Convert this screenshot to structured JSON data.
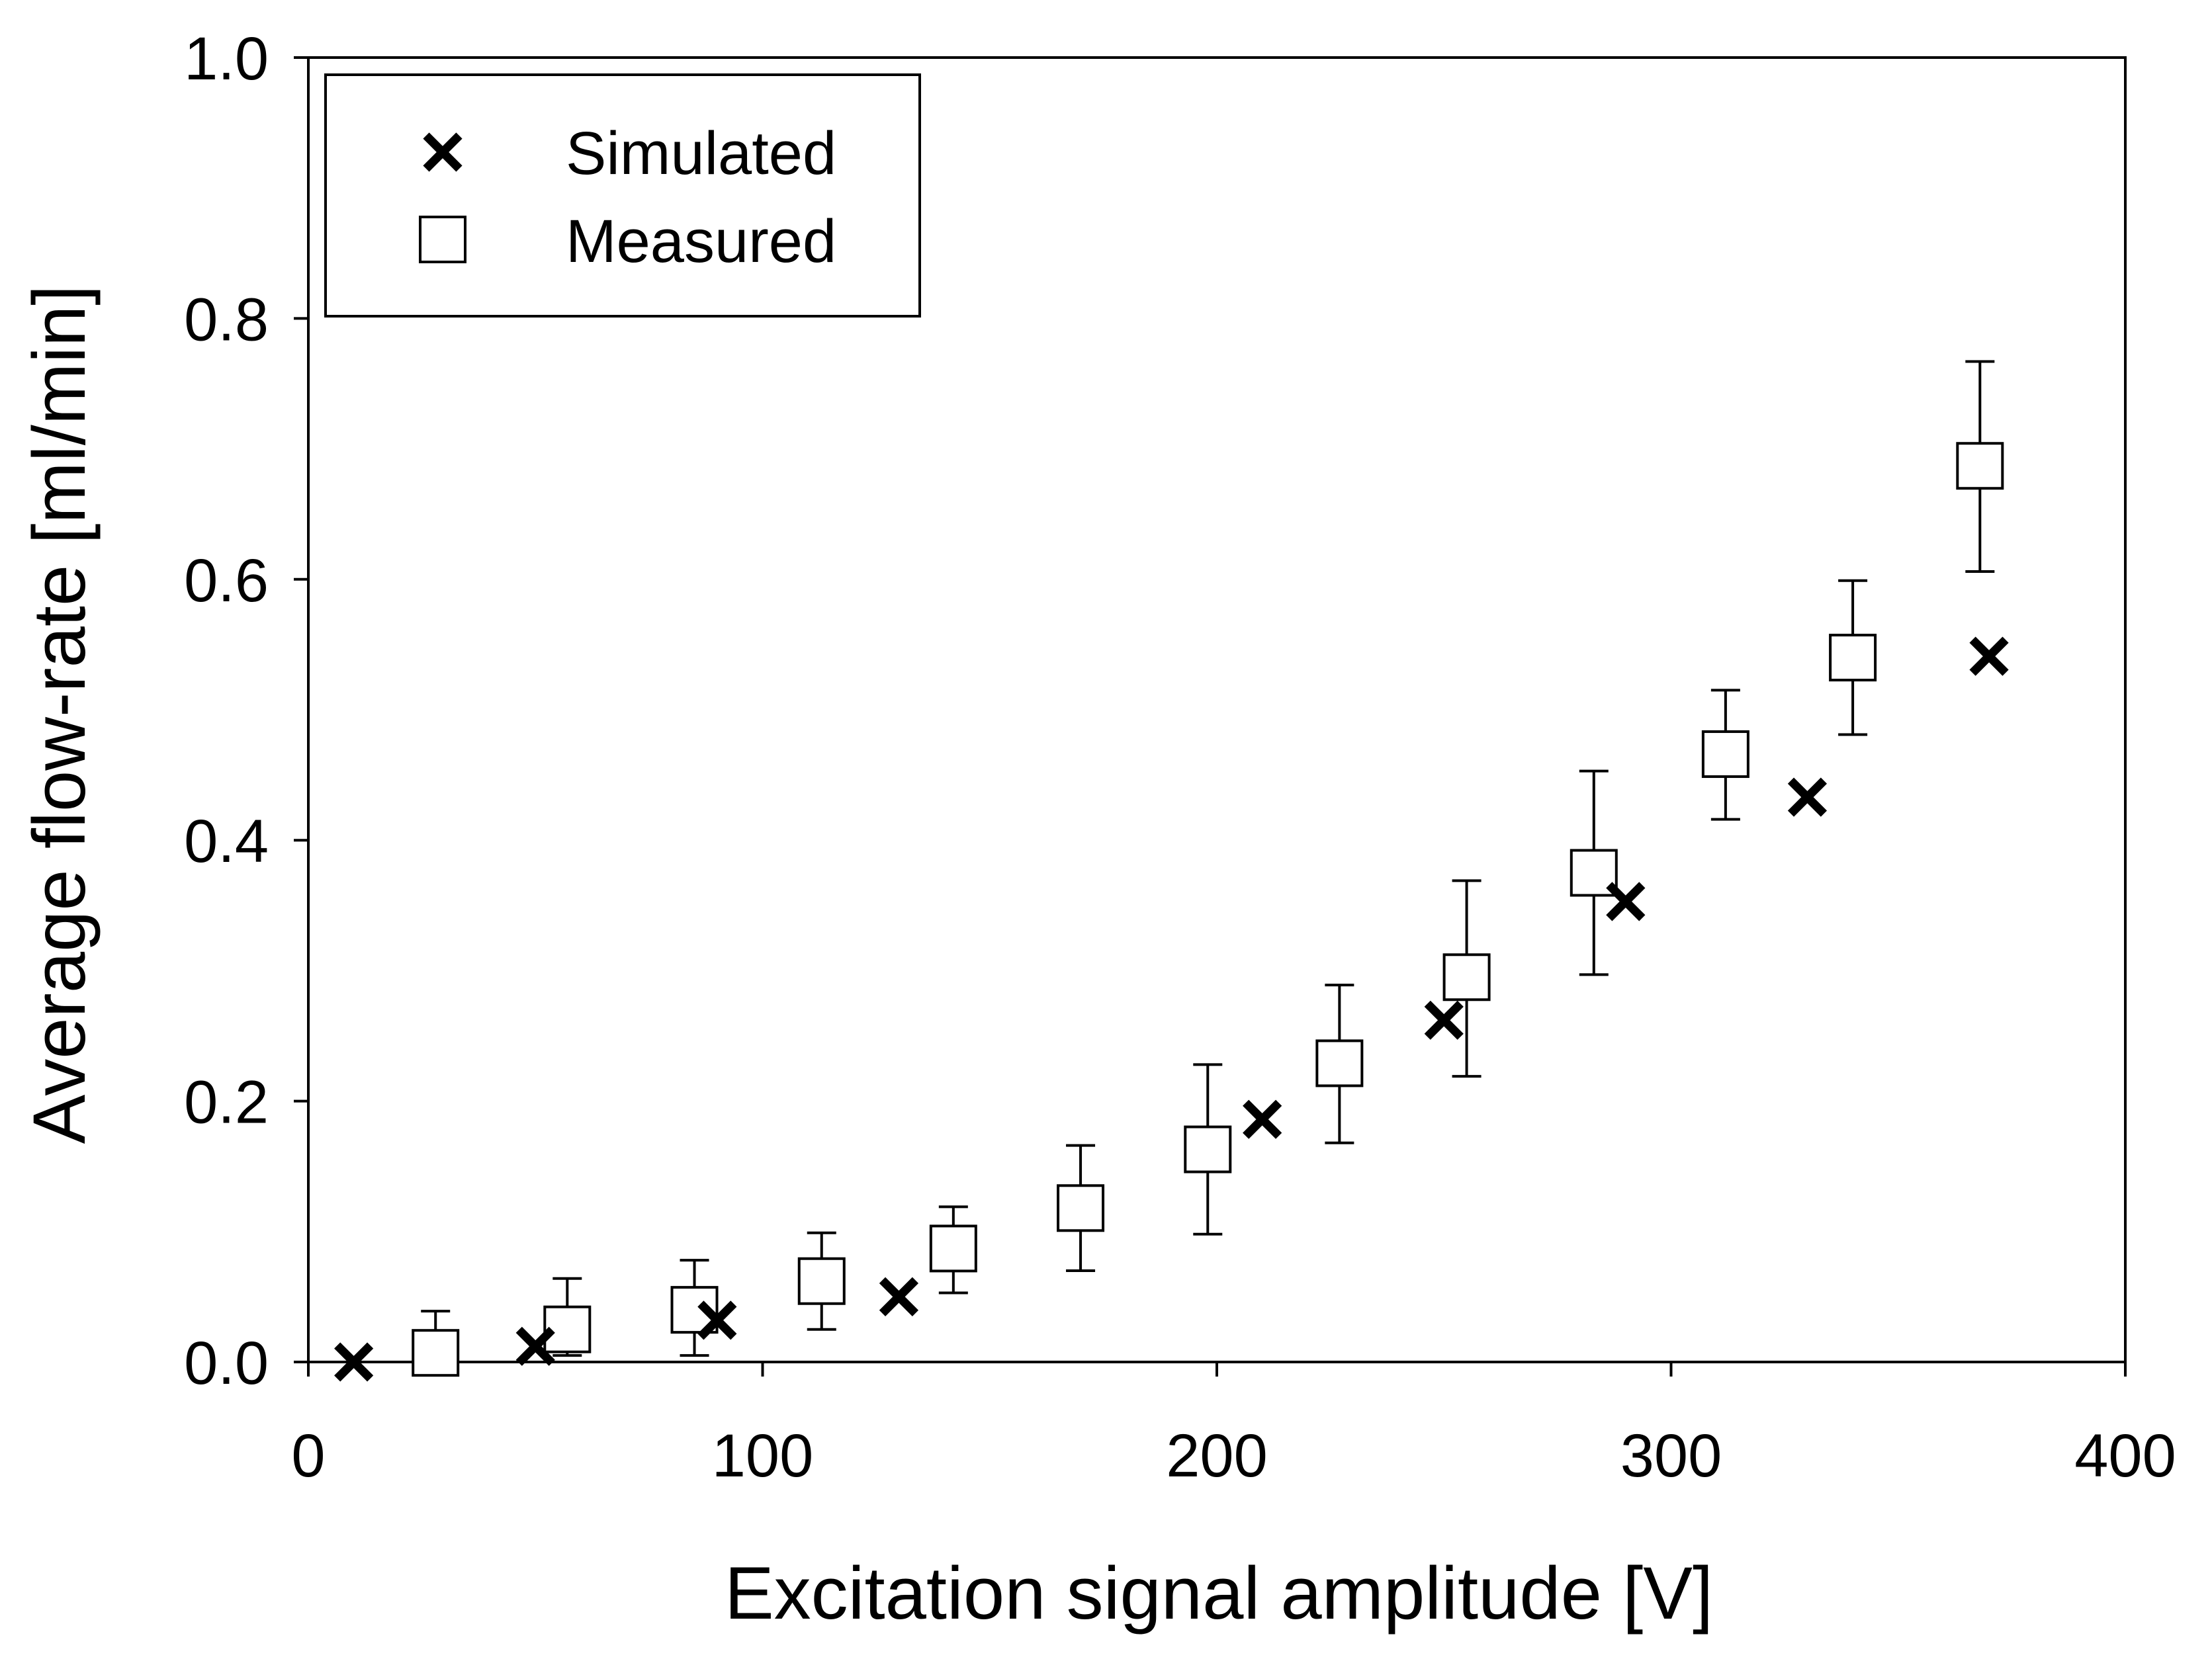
{
  "chart_data": {
    "type": "scatter",
    "title": "",
    "xlabel": "Excitation signal amplitude [V]",
    "ylabel": "Average flow-rate [ml/min]",
    "xlim": [
      0,
      400
    ],
    "ylim": [
      0,
      1.0
    ],
    "x_ticks": [
      0,
      100,
      200,
      300,
      400
    ],
    "x_tick_labels": [
      "0",
      "100",
      "200",
      "300",
      "400"
    ],
    "y_ticks": [
      0,
      0.2,
      0.4,
      0.6,
      0.8,
      1.0
    ],
    "y_tick_labels": [
      "0.0",
      "0.2",
      "0.4",
      "0.6",
      "0.8",
      "1.0"
    ],
    "grid": false,
    "legend_position": "top-left",
    "series": [
      {
        "name": "Simulated",
        "marker": "x",
        "x": [
          10,
          50,
          90,
          130,
          210,
          250,
          290,
          330,
          370
        ],
        "y": [
          0.0,
          0.012,
          0.032,
          0.05,
          0.186,
          0.262,
          0.353,
          0.433,
          0.541
        ]
      },
      {
        "name": "Measured",
        "marker": "open-square",
        "x": [
          28,
          57,
          85,
          113,
          142,
          170,
          198,
          227,
          255,
          283,
          312,
          340,
          368
        ],
        "y": [
          0.007,
          0.025,
          0.04,
          0.062,
          0.087,
          0.118,
          0.163,
          0.229,
          0.295,
          0.375,
          0.466,
          0.54,
          0.687
        ],
        "err_low": [
          0.0,
          0.005,
          0.005,
          0.025,
          0.053,
          0.07,
          0.098,
          0.168,
          0.219,
          0.297,
          0.416,
          0.481,
          0.606
        ],
        "err_high": [
          0.039,
          0.064,
          0.078,
          0.099,
          0.119,
          0.166,
          0.228,
          0.289,
          0.369,
          0.453,
          0.515,
          0.599,
          0.767
        ]
      }
    ],
    "colors": {
      "marker": "#000000",
      "background": "#ffffff"
    }
  }
}
